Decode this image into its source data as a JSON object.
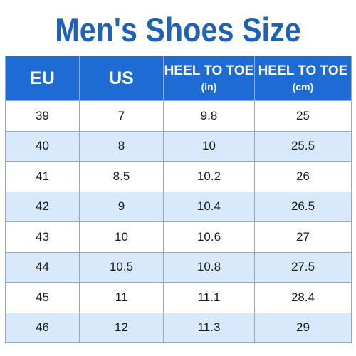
{
  "title": "Men's Shoes Size",
  "columns": [
    {
      "label": "EU",
      "unit": ""
    },
    {
      "label": "US",
      "unit": ""
    },
    {
      "label": "HEEL TO TOE",
      "unit": "(in)"
    },
    {
      "label": "HEEL TO TOE",
      "unit": "(cm)"
    }
  ],
  "rows": [
    [
      "39",
      "7",
      "9.8",
      "25"
    ],
    [
      "40",
      "8",
      "10",
      "25.5"
    ],
    [
      "41",
      "8.5",
      "10.2",
      "26"
    ],
    [
      "42",
      "9",
      "10.4",
      "26.5"
    ],
    [
      "43",
      "10",
      "10.6",
      "27"
    ],
    [
      "44",
      "10.5",
      "10.8",
      "27.5"
    ],
    [
      "45",
      "11",
      "11.1",
      "28.4"
    ],
    [
      "46",
      "12",
      "11.3",
      "29"
    ]
  ],
  "colors": {
    "title": "#1f61b5",
    "header_bg": "#1e6bd4",
    "header_text": "#ffffff",
    "row_alt_bg": "#d7e9fa",
    "row_bg": "#ffffff",
    "border": "#9aa7b8"
  }
}
